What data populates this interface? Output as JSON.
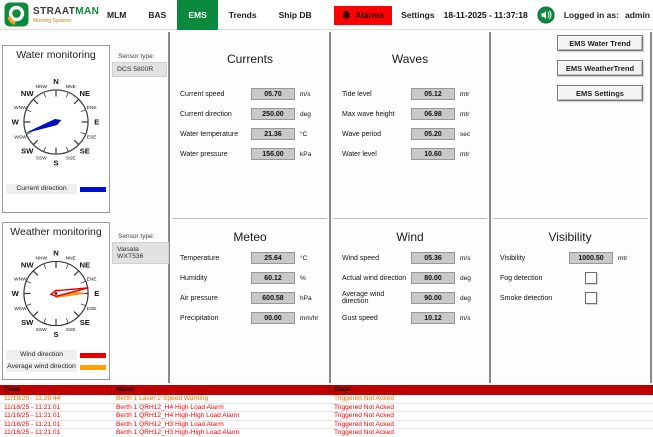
{
  "header": {
    "logo": {
      "brand_primary": "STRAAT",
      "brand_accent": "MAN",
      "tagline": "Mooring Systems"
    },
    "nav": [
      {
        "label": "MLM"
      },
      {
        "label": "BAS"
      },
      {
        "label": "EMS"
      },
      {
        "label": "Trends"
      },
      {
        "label": "Ship DB"
      }
    ],
    "active_tab": "EMS",
    "alarms_button_label": "Alarms",
    "settings_label": "Settings",
    "datetime": "18-11-2025 - 11:37:18",
    "logged_in_label": "Logged in as:",
    "username": "admin"
  },
  "colors": {
    "brand_green": "#0b8a3e",
    "alarm_button_red": "#ff0000",
    "table_header_red": "#c00000",
    "warning_orange": "#f07800",
    "alarm_text_red": "#ff0000",
    "needle_blue": "#0010d0",
    "needle_red": "#e80000",
    "needle_orange": "#ffa000"
  },
  "side_buttons": [
    {
      "label": "EMS Water Trend"
    },
    {
      "label": "EMS WeatherTrend"
    },
    {
      "label": "EMS Settings"
    }
  ],
  "compass_labels": [
    "N",
    "NNE",
    "NE",
    "ENE",
    "E",
    "ESE",
    "SE",
    "SSE",
    "S",
    "SSW",
    "SW",
    "WSW",
    "W",
    "WNW",
    "NW",
    "NNW"
  ],
  "water_monitoring": {
    "title": "Water monitoring",
    "sensor_type_label": "Sensor type:",
    "sensor_type": "DCS 5800R",
    "needle_bearing_deg": 250,
    "legend": [
      {
        "label": "Current direction",
        "color": "#0010d0"
      }
    ]
  },
  "weather_monitoring": {
    "title": "Weather monitoring",
    "sensor_type_label": "Sensor type:",
    "sensor_type": "Vaisala WXT536",
    "wind_bearing_deg": 80,
    "avg_wind_bearing_deg": 90,
    "legend": [
      {
        "label": "Wind direction",
        "color": "#e80000"
      },
      {
        "label": "Average wind direction",
        "color": "#ffa000"
      }
    ]
  },
  "sections": {
    "currents": {
      "title": "Currents",
      "rows": [
        {
          "label": "Current speed",
          "value": "05.70",
          "unit": "m/s"
        },
        {
          "label": "Current direction",
          "value": "250.00",
          "unit": "deg"
        },
        {
          "label": "Water temperature",
          "value": "21.36",
          "unit": "°C"
        },
        {
          "label": "Water pressure",
          "value": "156.00",
          "unit": "kPa"
        }
      ]
    },
    "waves": {
      "title": "Waves",
      "rows": [
        {
          "label": "Tide level",
          "value": "05.12",
          "unit": "mtr"
        },
        {
          "label": "Max wave height",
          "value": "06.98",
          "unit": "mtr"
        },
        {
          "label": "Wave period",
          "value": "05.20",
          "unit": "sec"
        },
        {
          "label": "Water level",
          "value": "10.60",
          "unit": "mtr"
        }
      ]
    },
    "meteo": {
      "title": "Meteo",
      "rows": [
        {
          "label": "Temperature",
          "value": "25.64",
          "unit": "°C"
        },
        {
          "label": "Humidity",
          "value": "60.12",
          "unit": "%"
        },
        {
          "label": "Air pressure",
          "value": "600.58",
          "unit": "hPa"
        },
        {
          "label": "Precipitation",
          "value": "00.00",
          "unit": "mm/hr"
        }
      ]
    },
    "wind": {
      "title": "Wind",
      "rows": [
        {
          "label": "Wind speed",
          "value": "05.36",
          "unit": "m/s"
        },
        {
          "label": "Actual wind direction",
          "value": "80.00",
          "unit": "deg"
        },
        {
          "label": "Average wind direction",
          "value": "90.00",
          "unit": "deg"
        },
        {
          "label": "Gust speed",
          "value": "10.12",
          "unit": "m/s"
        }
      ]
    },
    "visibility": {
      "title": "Visibility",
      "rows": [
        {
          "label": "Visibility",
          "value": "1000.50",
          "unit": "mtr"
        }
      ],
      "checkboxes": [
        {
          "label": "Fog detection",
          "checked": false
        },
        {
          "label": "Smoke detection",
          "checked": false
        }
      ]
    }
  },
  "alarms_table": {
    "columns": [
      "Time",
      "Name",
      "State"
    ],
    "rows": [
      {
        "time": "11/18/25 - 11:29:44",
        "name": "Berth 1 Laser 2 Speed Warning",
        "state": "Triggered Not Acked",
        "severity": "warning"
      },
      {
        "time": "11/18/25 - 11:21:01",
        "name": "Berth 1 QRH12_H4 High Load Alarm",
        "state": "Triggered Not Acked",
        "severity": "alarm"
      },
      {
        "time": "11/18/25 - 11:21:01",
        "name": "Berth 1 QRH12_H4 High-High Load Alarm",
        "state": "Triggered Not Acked",
        "severity": "alarm"
      },
      {
        "time": "11/18/25 - 11:21:01",
        "name": "Berth 1 QRH12_H3 High Load Alarm",
        "state": "Triggered Not Acked",
        "severity": "alarm"
      },
      {
        "time": "11/18/25 - 11:21:01",
        "name": "Berth 1 QRH12_H3 High-High Load Alarm",
        "state": "Triggered Not Acked",
        "severity": "alarm"
      }
    ]
  }
}
